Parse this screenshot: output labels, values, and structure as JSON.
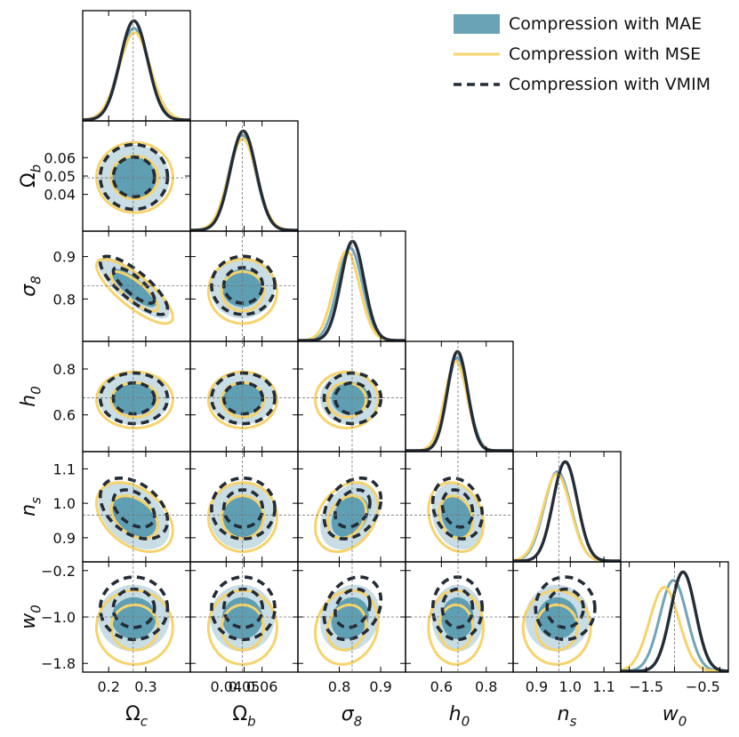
{
  "colors": {
    "mae_fill_outer": "#c9dde4",
    "mae_fill_inner": "#5f9fb4",
    "mae_line": "#6ea5b8",
    "mse": "#f6d36b",
    "vmim": "#232c37",
    "truth": "#777777"
  },
  "legend": {
    "items": [
      {
        "label": "Compression with MAE"
      },
      {
        "label": "Compression with MSE"
      },
      {
        "label": "Compression with VMIM"
      }
    ]
  },
  "chart_data": {
    "type": "corner",
    "parameters": [
      {
        "label": "Ω",
        "sub": "c",
        "truth": 0.266,
        "range": [
          0.13,
          0.42
        ],
        "ticks": [
          0.2,
          0.3
        ],
        "tick_labels": [
          "0.2",
          "0.3"
        ]
      },
      {
        "label": "Ω",
        "sub": "b",
        "truth": 0.049,
        "range": [
          0.02,
          0.08
        ],
        "ticks": [
          0.04,
          0.05,
          0.06
        ],
        "tick_labels": [
          "0.04",
          "0.05",
          "0.06"
        ]
      },
      {
        "label": "σ",
        "sub": "8",
        "truth": 0.831,
        "range": [
          0.7,
          0.96
        ],
        "ticks": [
          0.8,
          0.9
        ],
        "tick_labels": [
          "0.8",
          "0.9"
        ]
      },
      {
        "label": "h",
        "sub": "0",
        "truth": 0.674,
        "range": [
          0.44,
          0.92
        ],
        "ticks": [
          0.6,
          0.8
        ],
        "tick_labels": [
          "0.6",
          "0.8"
        ]
      },
      {
        "label": "n",
        "sub": "s",
        "truth": 0.966,
        "range": [
          0.83,
          1.15
        ],
        "ticks": [
          0.9,
          1.0,
          1.1
        ],
        "tick_labels": [
          "0.9",
          "1.0",
          "1.1"
        ]
      },
      {
        "label": "w",
        "sub": "0",
        "truth": -1.0,
        "range": [
          -1.95,
          -0.05
        ],
        "ticks": [
          -1.8,
          -1.0,
          -0.2
        ],
        "tick_labels": [
          "−1.8",
          "−1.0",
          "−0.2"
        ],
        "ticks_bottom": [
          -1.5,
          -0.5
        ],
        "tick_labels_bottom": [
          "−1.5",
          "−0.5"
        ]
      }
    ],
    "series": [
      {
        "name": "Compression with MAE",
        "style": "filled",
        "means": [
          0.268,
          0.049,
          0.826,
          0.672,
          0.962,
          -1.02
        ],
        "sigmas": [
          0.04,
          0.0075,
          0.03,
          0.048,
          0.04,
          0.24
        ],
        "corr": {
          "0-2": -0.8,
          "0-4": -0.4,
          "2-4": 0.3,
          "3-4": -0.2,
          "2-5": 0.15
        }
      },
      {
        "name": "Compression with MSE",
        "style": "line",
        "means": [
          0.27,
          0.0492,
          0.818,
          0.665,
          0.96,
          -1.18
        ],
        "sigmas": [
          0.042,
          0.0078,
          0.031,
          0.05,
          0.041,
          0.26
        ],
        "corr": {
          "0-2": -0.8,
          "0-4": -0.4,
          "2-4": 0.3,
          "3-4": -0.2,
          "2-5": 0.15
        }
      },
      {
        "name": "Compression with VMIM",
        "style": "dashed",
        "means": [
          0.268,
          0.0495,
          0.832,
          0.672,
          0.985,
          -0.85
        ],
        "sigmas": [
          0.037,
          0.0072,
          0.028,
          0.045,
          0.036,
          0.22
        ],
        "corr": {
          "0-2": -0.8,
          "0-4": -0.4,
          "2-4": 0.3,
          "3-4": -0.2,
          "2-5": 0.25
        }
      }
    ]
  }
}
